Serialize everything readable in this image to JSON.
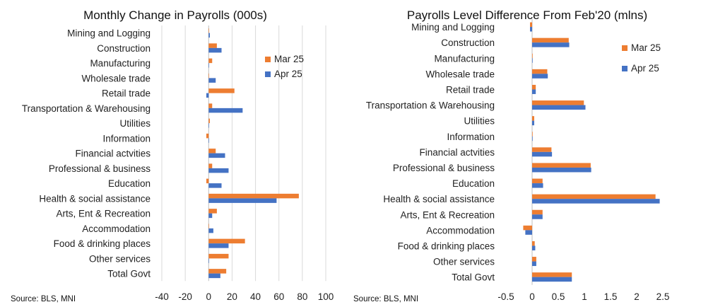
{
  "colors": {
    "mar": "#ed7d31",
    "apr": "#4472c4"
  },
  "chart_data": [
    {
      "type": "bar",
      "orientation": "horizontal",
      "title": "Monthly Change in Payrolls (000s)",
      "source": "Source: BLS, MNI",
      "categories": [
        "Mining and Logging",
        "Construction",
        "Manufacturing",
        "Wholesale trade",
        "Retail trade",
        "Transportation & Warehousing",
        "Utilities",
        "Information",
        "Financial actvities",
        "Professional & business",
        "Education",
        "Health & social assistance",
        "Arts, Ent & Recreation",
        "Accommodation",
        "Food & drinking places",
        "Other services",
        "Total Govt"
      ],
      "series": [
        {
          "name": "Mar 25",
          "values": [
            0,
            7,
            3,
            0,
            22,
            3,
            1,
            -2,
            6,
            3,
            -2,
            77,
            7,
            0,
            31,
            17,
            15
          ]
        },
        {
          "name": "Apr 25",
          "values": [
            1,
            11,
            0,
            6,
            -2,
            29,
            0,
            0,
            14,
            17,
            11,
            58,
            3,
            4,
            17,
            0,
            10
          ]
        }
      ],
      "xlim": [
        -40,
        100
      ],
      "xticks": [
        "-40",
        "-20",
        "0",
        "20",
        "40",
        "60",
        "80",
        "100"
      ],
      "grid": true,
      "legend_position": "right"
    },
    {
      "type": "bar",
      "orientation": "horizontal",
      "title": "Payrolls Level Difference From Feb'20 (mlns)",
      "source": "Source: BLS, MNI",
      "categories": [
        "Mining and Logging",
        "Construction",
        "Manufacturing",
        "Wholesale trade",
        "Retail trade",
        "Transportation & Warehousing",
        "Utilities",
        "Information",
        "Financial actvities",
        "Professional & business",
        "Education",
        "Health & social assistance",
        "Arts, Ent & Recreation",
        "Accommodation",
        "Food & drinking places",
        "Other services",
        "Total Govt"
      ],
      "series": [
        {
          "name": "Mar 25",
          "values": [
            -0.04,
            0.7,
            0.01,
            0.29,
            0.07,
            0.99,
            0.04,
            0.01,
            0.37,
            1.12,
            0.2,
            2.36,
            0.2,
            -0.17,
            0.05,
            0.08,
            0.76
          ]
        },
        {
          "name": "Apr 25",
          "values": [
            -0.04,
            0.71,
            0.01,
            0.3,
            0.07,
            1.02,
            0.04,
            0.01,
            0.38,
            1.13,
            0.21,
            2.44,
            0.2,
            -0.13,
            0.06,
            0.08,
            0.76
          ]
        }
      ],
      "xlim": [
        -0.5,
        2.5
      ],
      "xticks": [
        "-0.5",
        "0",
        "0.5",
        "1",
        "1.5",
        "2",
        "2.5"
      ],
      "grid": false,
      "legend_position": "right"
    }
  ]
}
